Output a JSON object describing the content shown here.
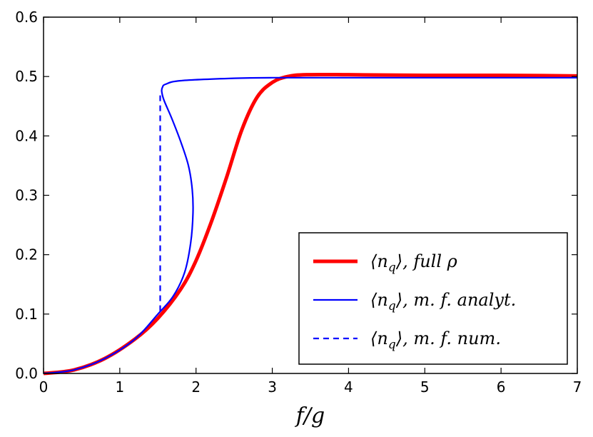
{
  "chart_data": {
    "type": "line",
    "xlabel": "f/g",
    "ylabel": "",
    "xlim": [
      0,
      7
    ],
    "ylim": [
      0,
      0.6
    ],
    "x_ticks": [
      0,
      1,
      2,
      3,
      4,
      5,
      6,
      7
    ],
    "x_tick_labels": [
      "0",
      "1",
      "2",
      "3",
      "4",
      "5",
      "6",
      "7"
    ],
    "y_ticks": [
      0.0,
      0.1,
      0.2,
      0.3,
      0.4,
      0.5,
      0.6
    ],
    "y_tick_labels": [
      "0.0",
      "0.1",
      "0.2",
      "0.3",
      "0.4",
      "0.5",
      "0.6"
    ],
    "grid": false,
    "legend_position": "bottom-right",
    "series": [
      {
        "name": "⟨n_q⟩, full ρ",
        "color": "#ff0000",
        "style": "solid-thick",
        "x": [
          0,
          0.4,
          0.8,
          1.2,
          1.5,
          1.8,
          2.0,
          2.2,
          2.4,
          2.6,
          2.8,
          3.0,
          3.2,
          3.45,
          4.0,
          5.0,
          6.0,
          7.0
        ],
        "y": [
          0.0,
          0.006,
          0.025,
          0.058,
          0.093,
          0.142,
          0.19,
          0.255,
          0.33,
          0.41,
          0.465,
          0.49,
          0.5,
          0.503,
          0.503,
          0.502,
          0.502,
          0.501
        ]
      },
      {
        "name": "⟨n_q⟩, m. f. analyt.",
        "color": "#0000ff",
        "style": "solid-thin",
        "x": [
          0,
          0.4,
          0.8,
          1.2,
          1.5,
          1.7,
          1.85,
          1.93,
          1.96,
          1.95,
          1.9,
          1.8,
          1.68,
          1.58,
          1.55,
          1.56,
          1.6,
          1.8,
          2.5,
          3.0,
          4.0,
          5.0,
          6.0,
          7.0
        ],
        "y": [
          0.0,
          0.006,
          0.025,
          0.058,
          0.1,
          0.13,
          0.17,
          0.22,
          0.27,
          0.31,
          0.35,
          0.39,
          0.43,
          0.46,
          0.475,
          0.482,
          0.487,
          0.493,
          0.497,
          0.498,
          0.498,
          0.498,
          0.498,
          0.498
        ]
      },
      {
        "name": "⟨n_q⟩, m. f. num.",
        "color": "#0000ff",
        "style": "dashed",
        "x": [
          1.53,
          1.53
        ],
        "y": [
          0.105,
          0.475
        ]
      }
    ]
  },
  "legend": {
    "entries": [
      {
        "prefix": "⟨n",
        "sub": "q",
        "suffix": "⟩,  full ρ"
      },
      {
        "prefix": "⟨n",
        "sub": "q",
        "suffix": "⟩,  m. f. analyt."
      },
      {
        "prefix": "⟨n",
        "sub": "q",
        "suffix": "⟩,  m. f. num."
      }
    ]
  },
  "axis_label": {
    "main": "f/g"
  }
}
